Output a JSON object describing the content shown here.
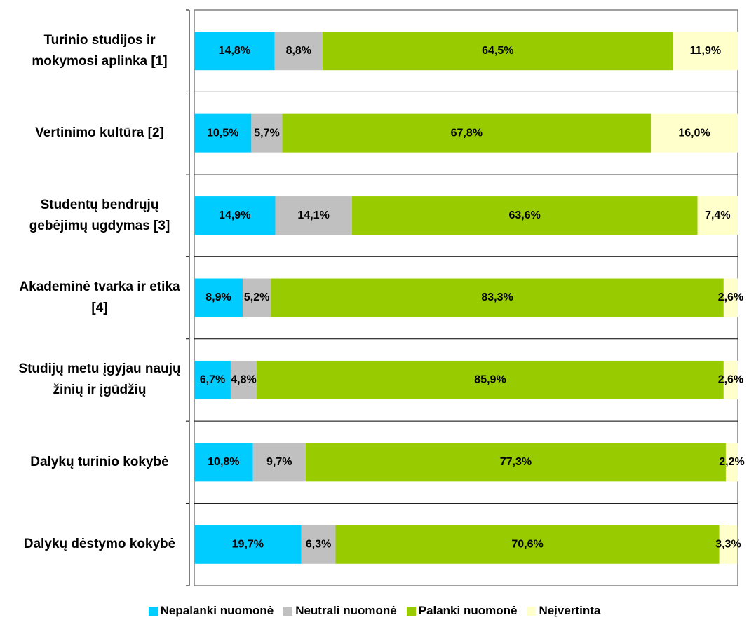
{
  "chart_data": {
    "type": "bar",
    "orientation": "horizontal",
    "stacked": true,
    "categories": [
      "Turinio studijos ir mokymosi aplinka [1]",
      "Vertinimo kultūra [2]",
      "Studentų bendrųjų gebėjimų ugdymas [3]",
      "Akademinė tvarka ir etika [4]",
      "Studijų metu įgyjau naujų žinių ir įgūdžių",
      "Dalykų turinio kokybė",
      "Dalykų dėstymo kokybė"
    ],
    "series": [
      {
        "name": "Nepalanki nuomonė",
        "color": "#00ccff",
        "values": [
          14.8,
          10.5,
          14.9,
          8.9,
          6.7,
          10.8,
          19.7
        ],
        "value_labels": [
          "14,8%",
          "10,5%",
          "14,9%",
          "8,9%",
          "6,7%",
          "10,8%",
          "19,7%"
        ]
      },
      {
        "name": "Neutrali nuomonė",
        "color": "#c0c0c0",
        "values": [
          8.8,
          5.7,
          14.1,
          5.2,
          4.8,
          9.7,
          6.3
        ],
        "value_labels": [
          "8,8%",
          "5,7%",
          "14,1%",
          "5,2%",
          "4,8%",
          "9,7%",
          "6,3%"
        ]
      },
      {
        "name": "Palanki nuomonė",
        "color": "#99cc00",
        "values": [
          64.5,
          67.8,
          63.6,
          83.3,
          85.9,
          77.3,
          70.6
        ],
        "value_labels": [
          "64,5%",
          "67,8%",
          "63,6%",
          "83,3%",
          "85,9%",
          "77,3%",
          "70,6%"
        ]
      },
      {
        "name": "Neįvertinta",
        "color": "#ffffcc",
        "values": [
          11.9,
          16.0,
          7.4,
          2.6,
          2.6,
          2.2,
          3.3
        ],
        "value_labels": [
          "11,9%",
          "16,0%",
          "7,4%",
          "2,6%",
          "2,6%",
          "2,2%",
          "3,3%"
        ]
      }
    ],
    "xlim": [
      0,
      100
    ],
    "grid": true,
    "legend": "bottom"
  }
}
